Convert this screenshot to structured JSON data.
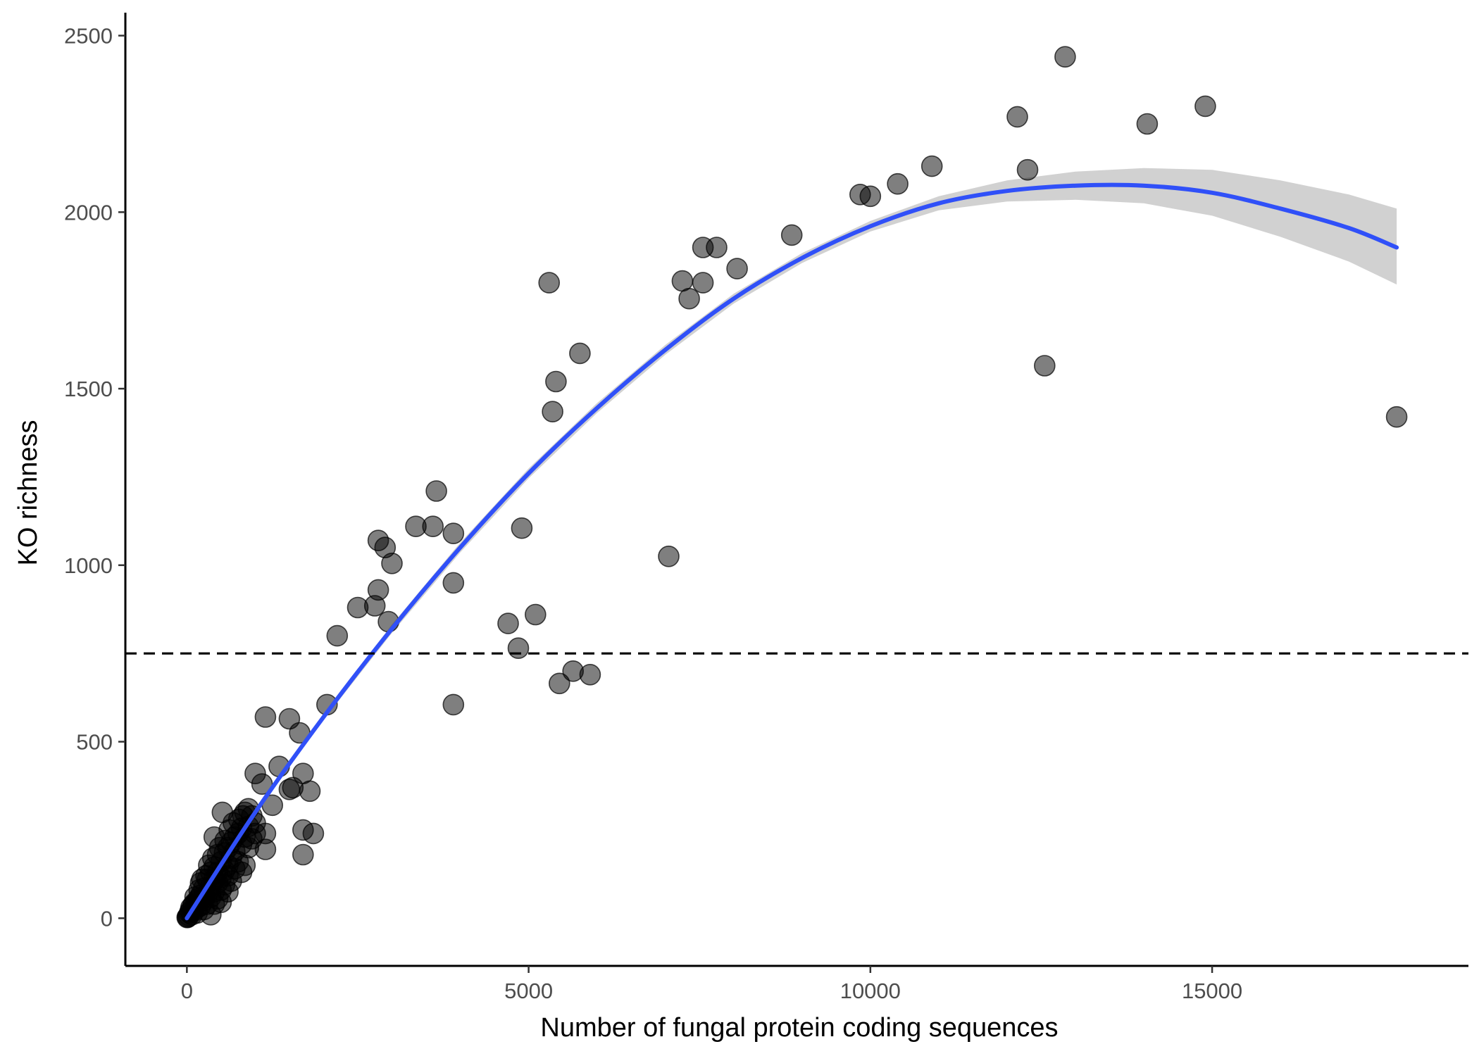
{
  "chart_data": {
    "type": "scatter",
    "xlabel": "Number of fungal protein coding sequences",
    "ylabel": "KO richness",
    "xlim": [
      -900,
      18750
    ],
    "ylim": [
      -135,
      2565
    ],
    "x_ticks": [
      0,
      5000,
      10000,
      15000
    ],
    "y_ticks": [
      0,
      500,
      1000,
      1500,
      2000,
      2500
    ],
    "grid": false,
    "legend": "none",
    "reference_line": {
      "type": "horizontal",
      "y": 750,
      "style": "dashed",
      "color": "#000000"
    },
    "point_color": "#000000",
    "point_opacity": 0.5,
    "fit": {
      "label": "quadratic fit with confidence band",
      "color": "#3050f8",
      "band_color": "#bebebe",
      "x": [
        0,
        1000,
        2000,
        3000,
        4000,
        5000,
        6000,
        7000,
        8000,
        9000,
        10000,
        11000,
        12000,
        13000,
        14000,
        15000,
        16000,
        17000,
        17700
      ],
      "y": [
        0,
        300,
        570,
        820,
        1050,
        1260,
        1445,
        1610,
        1755,
        1870,
        1960,
        2025,
        2060,
        2075,
        2075,
        2055,
        2010,
        1955,
        1900
      ],
      "lower": [
        0,
        295,
        562,
        808,
        1036,
        1246,
        1431,
        1596,
        1741,
        1856,
        1945,
        2005,
        2030,
        2035,
        2025,
        1990,
        1930,
        1860,
        1795
      ],
      "upper": [
        0,
        305,
        578,
        832,
        1064,
        1274,
        1459,
        1624,
        1769,
        1884,
        1975,
        2045,
        2090,
        2115,
        2125,
        2120,
        2090,
        2050,
        2010
      ]
    },
    "points": [
      {
        "x": 12850,
        "y": 2440
      },
      {
        "x": 14900,
        "y": 2300
      },
      {
        "x": 12150,
        "y": 2270
      },
      {
        "x": 14050,
        "y": 2250
      },
      {
        "x": 10900,
        "y": 2130
      },
      {
        "x": 12300,
        "y": 2120
      },
      {
        "x": 10400,
        "y": 2080
      },
      {
        "x": 9850,
        "y": 2050
      },
      {
        "x": 10000,
        "y": 2045
      },
      {
        "x": 8850,
        "y": 1935
      },
      {
        "x": 7550,
        "y": 1900
      },
      {
        "x": 7750,
        "y": 1900
      },
      {
        "x": 8050,
        "y": 1840
      },
      {
        "x": 7250,
        "y": 1805
      },
      {
        "x": 7550,
        "y": 1800
      },
      {
        "x": 7350,
        "y": 1755
      },
      {
        "x": 5300,
        "y": 1800
      },
      {
        "x": 5750,
        "y": 1600
      },
      {
        "x": 5400,
        "y": 1520
      },
      {
        "x": 5350,
        "y": 1435
      },
      {
        "x": 12550,
        "y": 1565
      },
      {
        "x": 17700,
        "y": 1420
      },
      {
        "x": 3650,
        "y": 1210
      },
      {
        "x": 3350,
        "y": 1110
      },
      {
        "x": 3600,
        "y": 1110
      },
      {
        "x": 3900,
        "y": 1090
      },
      {
        "x": 4900,
        "y": 1105
      },
      {
        "x": 2800,
        "y": 1070
      },
      {
        "x": 2900,
        "y": 1050
      },
      {
        "x": 3000,
        "y": 1005
      },
      {
        "x": 7050,
        "y": 1025
      },
      {
        "x": 3900,
        "y": 950
      },
      {
        "x": 2800,
        "y": 930
      },
      {
        "x": 2500,
        "y": 880
      },
      {
        "x": 2750,
        "y": 885
      },
      {
        "x": 2950,
        "y": 840
      },
      {
        "x": 4700,
        "y": 835
      },
      {
        "x": 5100,
        "y": 860
      },
      {
        "x": 2200,
        "y": 800
      },
      {
        "x": 4850,
        "y": 765
      },
      {
        "x": 5650,
        "y": 700
      },
      {
        "x": 5900,
        "y": 690
      },
      {
        "x": 5450,
        "y": 665
      },
      {
        "x": 3900,
        "y": 605
      },
      {
        "x": 2050,
        "y": 605
      },
      {
        "x": 1150,
        "y": 570
      },
      {
        "x": 1500,
        "y": 565
      },
      {
        "x": 1650,
        "y": 525
      },
      {
        "x": 1350,
        "y": 430
      },
      {
        "x": 1700,
        "y": 410
      },
      {
        "x": 1000,
        "y": 410
      },
      {
        "x": 1100,
        "y": 380
      },
      {
        "x": 1500,
        "y": 365
      },
      {
        "x": 1800,
        "y": 360
      },
      {
        "x": 1550,
        "y": 370
      },
      {
        "x": 1250,
        "y": 320
      },
      {
        "x": 900,
        "y": 310
      },
      {
        "x": 520,
        "y": 300
      },
      {
        "x": 1700,
        "y": 250
      },
      {
        "x": 1850,
        "y": 240
      },
      {
        "x": 1150,
        "y": 240
      },
      {
        "x": 1150,
        "y": 195
      },
      {
        "x": 1700,
        "y": 180
      },
      {
        "x": 850,
        "y": 300
      },
      {
        "x": 950,
        "y": 290
      },
      {
        "x": 1000,
        "y": 270
      },
      {
        "x": 900,
        "y": 260
      },
      {
        "x": 800,
        "y": 255
      },
      {
        "x": 1000,
        "y": 240
      },
      {
        "x": 950,
        "y": 225
      },
      {
        "x": 850,
        "y": 230
      },
      {
        "x": 750,
        "y": 240
      },
      {
        "x": 700,
        "y": 230
      },
      {
        "x": 650,
        "y": 215
      },
      {
        "x": 800,
        "y": 210
      },
      {
        "x": 600,
        "y": 200
      },
      {
        "x": 900,
        "y": 200
      },
      {
        "x": 700,
        "y": 190
      },
      {
        "x": 550,
        "y": 185
      },
      {
        "x": 450,
        "y": 180
      },
      {
        "x": 400,
        "y": 230
      },
      {
        "x": 650,
        "y": 170
      },
      {
        "x": 750,
        "y": 160
      },
      {
        "x": 500,
        "y": 160
      },
      {
        "x": 850,
        "y": 150
      },
      {
        "x": 600,
        "y": 150
      },
      {
        "x": 400,
        "y": 145
      },
      {
        "x": 700,
        "y": 140
      },
      {
        "x": 550,
        "y": 135
      },
      {
        "x": 450,
        "y": 130
      },
      {
        "x": 350,
        "y": 130
      },
      {
        "x": 800,
        "y": 130
      },
      {
        "x": 600,
        "y": 120
      },
      {
        "x": 500,
        "y": 115
      },
      {
        "x": 400,
        "y": 110
      },
      {
        "x": 300,
        "y": 110
      },
      {
        "x": 650,
        "y": 105
      },
      {
        "x": 200,
        "y": 100
      },
      {
        "x": 450,
        "y": 100
      },
      {
        "x": 550,
        "y": 95
      },
      {
        "x": 350,
        "y": 90
      },
      {
        "x": 250,
        "y": 85
      },
      {
        "x": 500,
        "y": 80
      },
      {
        "x": 400,
        "y": 75
      },
      {
        "x": 300,
        "y": 70
      },
      {
        "x": 600,
        "y": 75
      },
      {
        "x": 200,
        "y": 65
      },
      {
        "x": 350,
        "y": 60
      },
      {
        "x": 450,
        "y": 55
      },
      {
        "x": 250,
        "y": 50
      },
      {
        "x": 150,
        "y": 50
      },
      {
        "x": 500,
        "y": 45
      },
      {
        "x": 300,
        "y": 40
      },
      {
        "x": 100,
        "y": 40
      },
      {
        "x": 200,
        "y": 35
      },
      {
        "x": 400,
        "y": 40
      },
      {
        "x": 150,
        "y": 30
      },
      {
        "x": 250,
        "y": 25
      },
      {
        "x": 100,
        "y": 20
      },
      {
        "x": 50,
        "y": 20
      },
      {
        "x": 350,
        "y": 10
      },
      {
        "x": 150,
        "y": 15
      },
      {
        "x": 75,
        "y": 10
      },
      {
        "x": 30,
        "y": 8
      },
      {
        "x": 10,
        "y": 3
      },
      {
        "x": 60,
        "y": 30
      },
      {
        "x": 120,
        "y": 60
      },
      {
        "x": 180,
        "y": 80
      },
      {
        "x": 220,
        "y": 110
      },
      {
        "x": 280,
        "y": 120
      },
      {
        "x": 320,
        "y": 150
      },
      {
        "x": 380,
        "y": 170
      },
      {
        "x": 480,
        "y": 200
      },
      {
        "x": 560,
        "y": 220
      },
      {
        "x": 620,
        "y": 250
      },
      {
        "x": 680,
        "y": 270
      },
      {
        "x": 760,
        "y": 280
      },
      {
        "x": 820,
        "y": 290
      },
      {
        "x": 40,
        "y": 15
      },
      {
        "x": 90,
        "y": 35
      },
      {
        "x": 130,
        "y": 45
      },
      {
        "x": 170,
        "y": 55
      },
      {
        "x": 20,
        "y": 5
      },
      {
        "x": 5,
        "y": 2
      }
    ]
  }
}
